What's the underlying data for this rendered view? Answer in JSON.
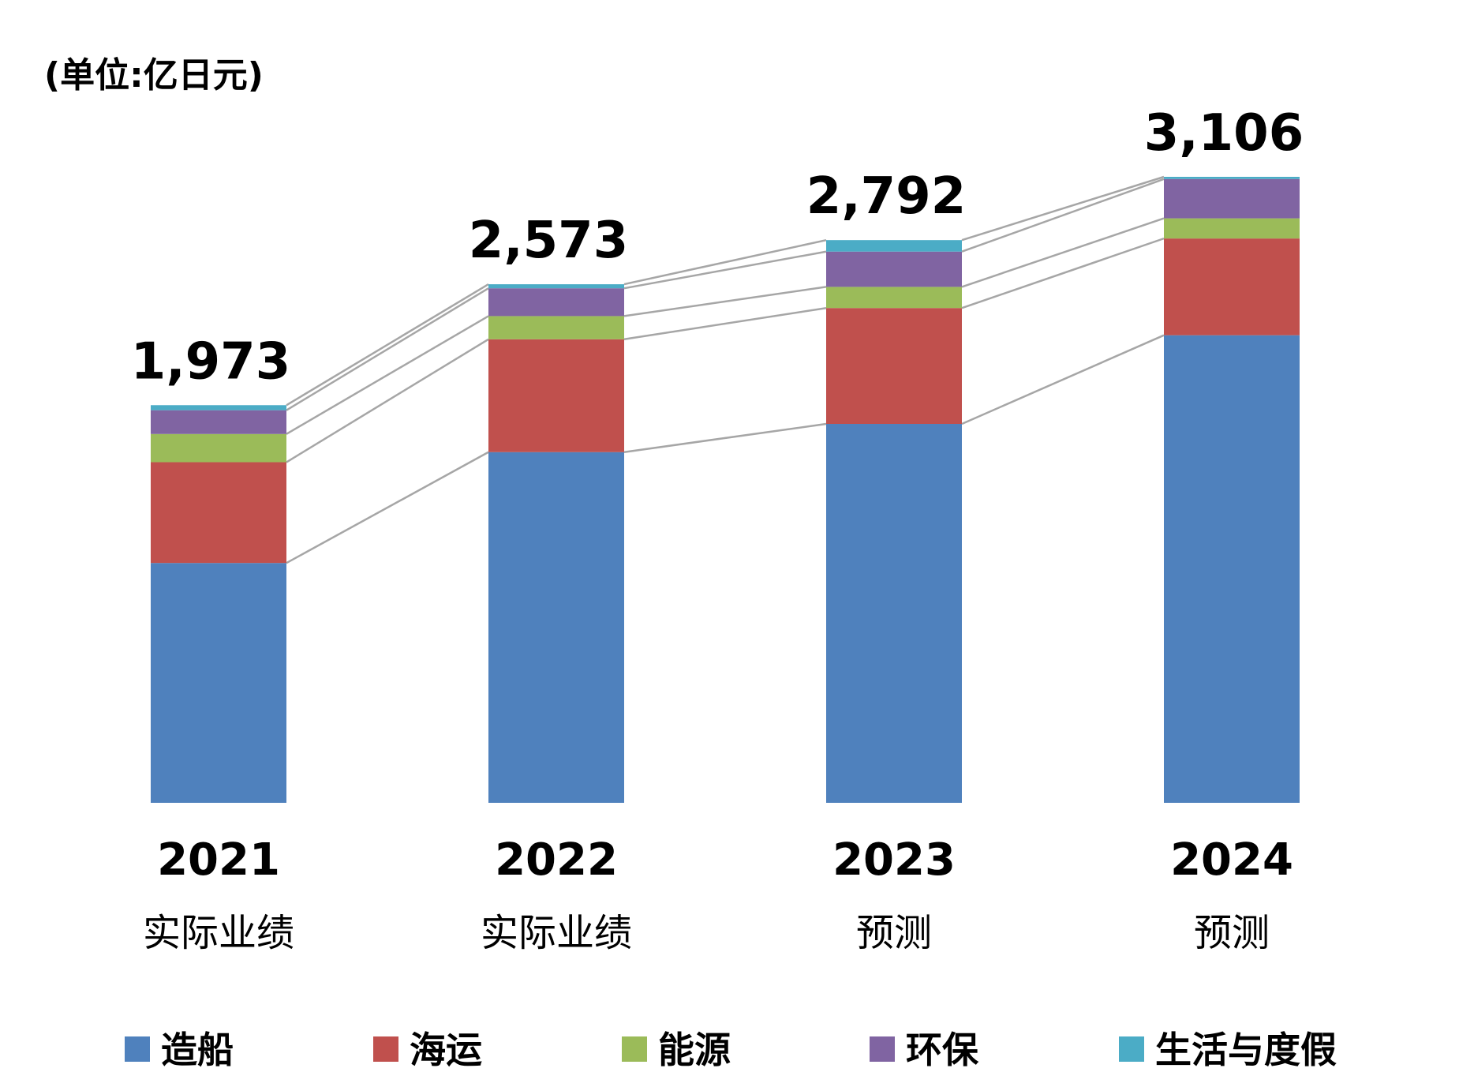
{
  "unit_label": "(单位:亿日元)",
  "chart_data": {
    "type": "bar",
    "stacked": true,
    "categories": [
      "2021",
      "2022",
      "2023",
      "2024"
    ],
    "category_sublabels": [
      "实际业绩",
      "实际业绩",
      "预测",
      "预测"
    ],
    "totals": [
      "1,973",
      "2,573",
      "2,792",
      "3,106"
    ],
    "series": [
      {
        "name": "造船",
        "color": "#4F81BD",
        "values": [
          1190,
          1740,
          1880,
          2320
        ]
      },
      {
        "name": "海运",
        "color": "#C0504D",
        "values": [
          500,
          560,
          575,
          480
        ]
      },
      {
        "name": "能源",
        "color": "#9BBB59",
        "values": [
          140,
          115,
          105,
          100
        ]
      },
      {
        "name": "环保",
        "color": "#8064A2",
        "values": [
          118,
          138,
          175,
          195
        ]
      },
      {
        "name": "生活与度假",
        "color": "#4BACC6",
        "values": [
          25,
          20,
          57,
          11
        ]
      }
    ],
    "ylim": [
      0,
      3106
    ],
    "connector_lines": true,
    "connector_color": "#A6A6A6",
    "legend_position": "bottom"
  }
}
